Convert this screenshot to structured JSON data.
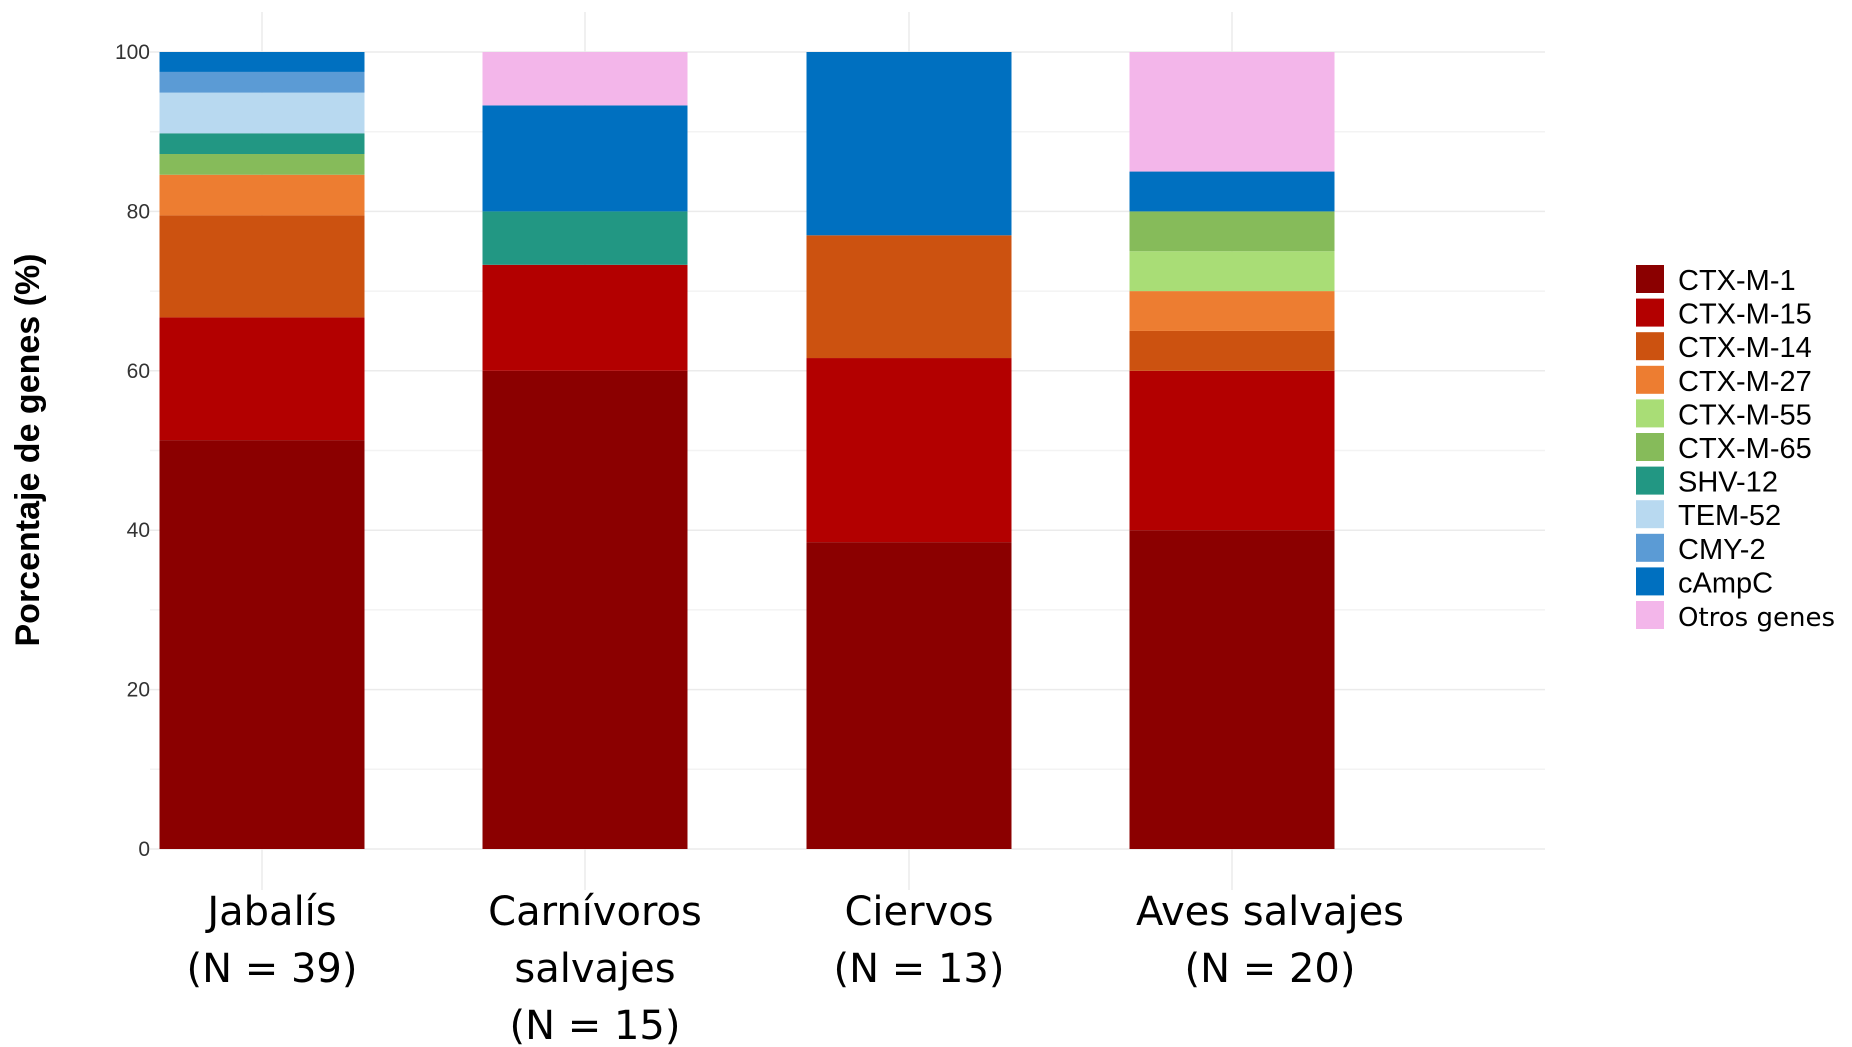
{
  "chart_data": {
    "type": "bar",
    "stacked": true,
    "ylabel": "Porcentaje de genes (%)",
    "xlabel": "",
    "ylim": [
      0,
      100
    ],
    "yticks": [
      "0",
      "20",
      "40",
      "60",
      "80",
      "100"
    ],
    "grid": true,
    "legend_position": "right",
    "categories": [
      [
        "Jabalís",
        "(N = 39)"
      ],
      [
        "Carnívoros",
        "salvajes",
        "(N = 15)"
      ],
      [
        "Ciervos",
        "(N = 13)"
      ],
      [
        "Aves salvajes",
        "(N = 20)"
      ]
    ],
    "series": [
      {
        "name": "CTX-M-1",
        "color": "#8b0000",
        "values": [
          51.3,
          60.0,
          38.5,
          40.0
        ]
      },
      {
        "name": "CTX-M-15",
        "color": "#b30000",
        "values": [
          15.4,
          13.3,
          23.1,
          20.0
        ]
      },
      {
        "name": "CTX-M-14",
        "color": "#cc5210",
        "values": [
          12.8,
          0,
          15.4,
          5.0
        ]
      },
      {
        "name": "CTX-M-27",
        "color": "#ed7d31",
        "values": [
          5.1,
          0,
          0,
          5.0
        ]
      },
      {
        "name": "CTX-M-55",
        "color": "#a9dd76",
        "values": [
          0,
          0,
          0,
          5.0
        ]
      },
      {
        "name": "CTX-M-65",
        "color": "#86bb5a",
        "values": [
          2.6,
          0,
          0,
          5.0
        ]
      },
      {
        "name": "SHV-12",
        "color": "#229783",
        "values": [
          2.6,
          6.7,
          0,
          0
        ]
      },
      {
        "name": "TEM-52",
        "color": "#b8d9f0",
        "values": [
          5.1,
          0,
          0,
          0
        ]
      },
      {
        "name": "CMY-2",
        "color": "#5b9bd5",
        "values": [
          2.6,
          0,
          0,
          0
        ]
      },
      {
        "name": "cAmpC",
        "color": "#0070c0",
        "values": [
          2.5,
          13.3,
          23.0,
          5.0
        ]
      },
      {
        "name": "Otros genes",
        "color": "#f3b6ea",
        "values": [
          0,
          6.7,
          0,
          15.0
        ]
      }
    ]
  }
}
